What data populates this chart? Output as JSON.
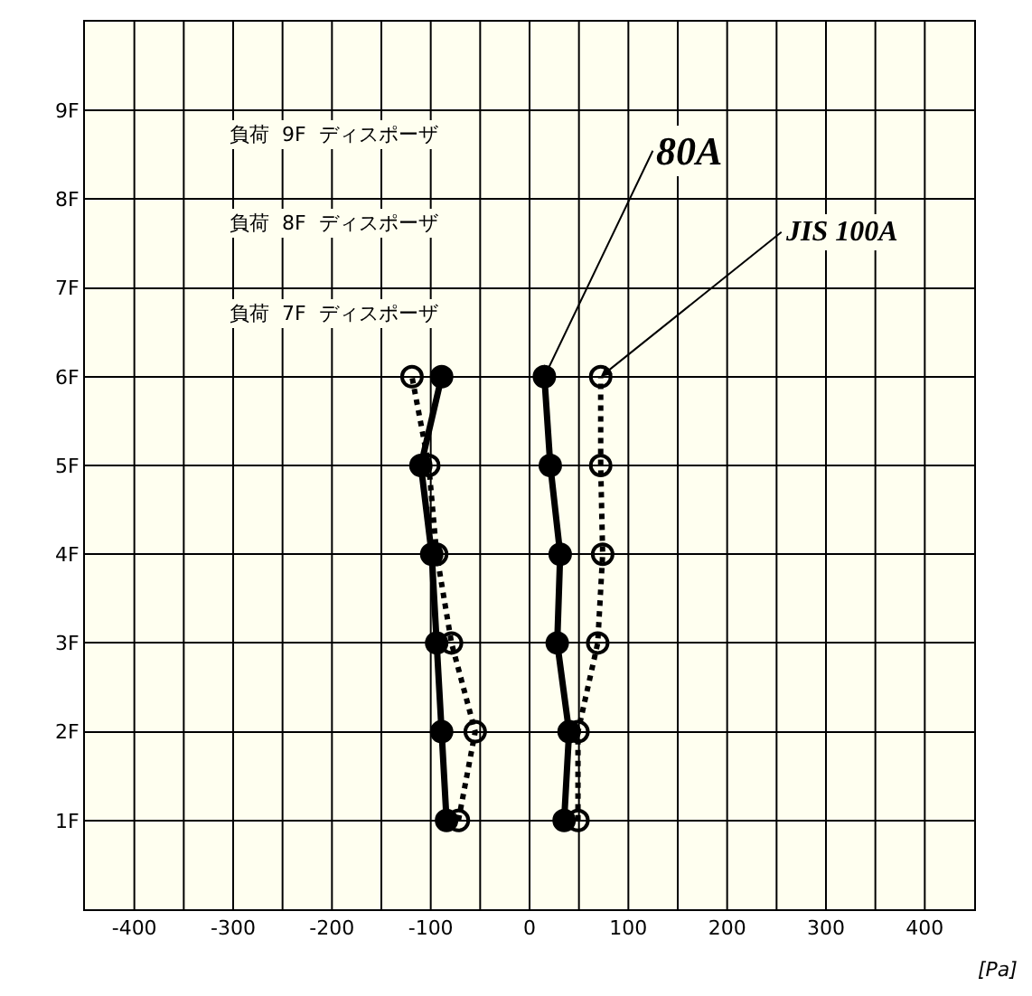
{
  "chart_data": {
    "type": "line",
    "xlabel": "[Pa]",
    "xlim": [
      -450,
      450
    ],
    "ylim": [
      0,
      10
    ],
    "xticks": [
      {
        "value": -450,
        "label": null
      },
      -400,
      {
        "value": -350,
        "label": null
      },
      -300,
      {
        "value": -250,
        "label": null
      },
      -200,
      {
        "value": -150,
        "label": null
      },
      -100,
      {
        "value": -50,
        "label": null
      },
      0,
      {
        "value": 50,
        "label": null
      },
      100,
      {
        "value": 150,
        "label": null
      },
      200,
      {
        "value": 250,
        "label": null
      },
      300,
      {
        "value": 350,
        "label": null
      },
      400,
      {
        "value": 450,
        "label": null
      }
    ],
    "yticks": [
      {
        "value": 1,
        "label": "1F"
      },
      {
        "value": 2,
        "label": "2F"
      },
      {
        "value": 3,
        "label": "3F"
      },
      {
        "value": 4,
        "label": "4F"
      },
      {
        "value": 5,
        "label": "5F"
      },
      {
        "value": 6,
        "label": "6F"
      },
      {
        "value": 7,
        "label": "7F"
      },
      {
        "value": 8,
        "label": "8F"
      },
      {
        "value": 9,
        "label": "9F"
      }
    ],
    "grid": true,
    "marker": "circle",
    "series": [
      {
        "color": "#000000",
        "line_style": "solid",
        "x": [
          -84,
          -89,
          -94,
          -99,
          -110,
          -89
        ],
        "values": [
          1,
          2,
          3,
          4,
          5,
          6
        ]
      },
      {
        "color": "#000000",
        "line_style": "dotted",
        "x": [
          -72,
          -55,
          -79,
          -94,
          -102,
          -119
        ],
        "values": [
          1,
          2,
          3,
          4,
          5,
          6
        ]
      },
      {
        "color": "#000000",
        "line_style": "solid",
        "x": [
          35,
          40,
          28,
          31,
          21,
          15
        ],
        "values": [
          1,
          2,
          3,
          4,
          5,
          6
        ]
      },
      {
        "color": "#000000",
        "line_style": "dotted",
        "x": [
          49,
          49,
          69,
          74,
          72,
          72
        ],
        "values": [
          1,
          2,
          3,
          4,
          5,
          6
        ]
      }
    ],
    "annotations": [
      {
        "text": "80A",
        "x": 15,
        "y": 6
      },
      {
        "text": "JIS 100A",
        "x": 72,
        "y": 6
      },
      "負荷  9F  ディスポーザ",
      "負荷  8F  ディスポーザ",
      "負荷  7F  ディスポーザ"
    ]
  }
}
